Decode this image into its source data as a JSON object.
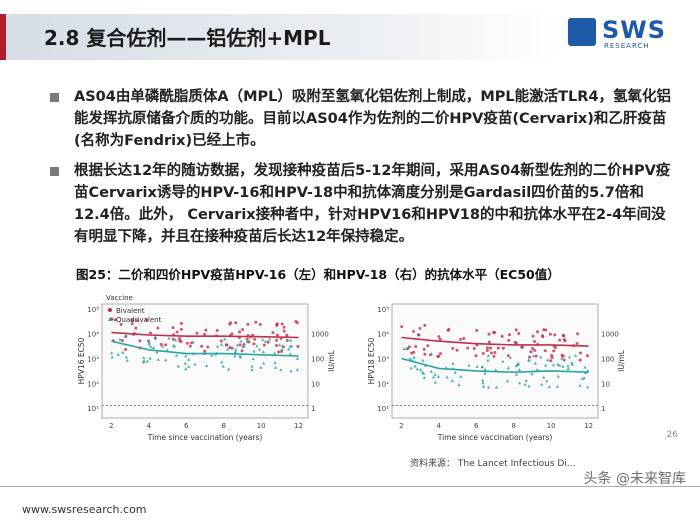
{
  "header": {
    "title": "2.8 复合佐剂——铝佐剂+MPL",
    "logo_text": "SWS",
    "logo_sub": "RESEARCH",
    "accent_color": "#b01c2e",
    "brand_color": "#1f5aa8"
  },
  "bullets": [
    "AS04由单磷酰脂质体A（MPL）吸附至氢氧化铝佐剂上制成，MPL能激活TLR4，氢氧化铝能发挥抗原储备介质的功能。目前以AS04作为佐剂的二价HPV疫苗(Cervarix)和乙肝疫苗(名称为Fendrix)已经上市。",
    "根据长达12年的随访数据，发现接种疫苗后5-12年期间，采用AS04新型佐剂的二价HPV疫苗Cervarix诱导的HPV-16和HPV-18中和抗体滴度分别是Gardasil四价苗的5.7倍和12.4倍。此外， Cervarix接种者中，针对HPV16和HPV18的中和抗体水平在2-4年间没有明显下降，并且在接种疫苗后长达12年保持稳定。"
  ],
  "figure": {
    "caption": "图25：二价和四价HPV疫苗HPV-16（左）和HPV-18（右）的抗体水平（EC50值）",
    "legend_title": "Vaccine",
    "legend_items": [
      "Bivalent",
      "Quadrivalent"
    ],
    "source": "资料来源： The Lancet Infectious Di..."
  },
  "chart_data": [
    {
      "type": "scatter",
      "title": "",
      "xlabel": "Time since vaccination (years)",
      "ylabel": "HPV16 EC50",
      "y2label": "IU/mL",
      "x_ticks": [
        2,
        4,
        6,
        8,
        10,
        12
      ],
      "y_ticks": [
        "10¹",
        "10²",
        "10³",
        "10⁴",
        "10⁵"
      ],
      "y2_ticks": [
        "1000",
        "100",
        "10",
        "1"
      ],
      "xlim": [
        1.5,
        12.5
      ],
      "series": [
        {
          "name": "Bivalent",
          "color": "#c0304a",
          "trend": [
            [
              2,
              4.05
            ],
            [
              4,
              3.95
            ],
            [
              6,
              3.9
            ],
            [
              8,
              3.9
            ],
            [
              10,
              3.88
            ],
            [
              12,
              3.85
            ]
          ]
        },
        {
          "name": "Quadrivalent",
          "color": "#2aa5a8",
          "trend": [
            [
              2,
              3.7
            ],
            [
              4,
              3.35
            ],
            [
              6,
              3.2
            ],
            [
              8,
              3.2
            ],
            [
              10,
              3.15
            ],
            [
              12,
              3.1
            ]
          ]
        }
      ]
    },
    {
      "type": "scatter",
      "title": "",
      "xlabel": "Time since vaccination (years)",
      "ylabel": "HPV18 EC50",
      "y2label": "IU/mL",
      "x_ticks": [
        2,
        4,
        6,
        8,
        10,
        12
      ],
      "y_ticks": [
        "10¹",
        "10²",
        "10³",
        "10⁴",
        "10⁵"
      ],
      "y2_ticks": [
        "1000",
        "100",
        "10",
        "1"
      ],
      "xlim": [
        1.5,
        12.5
      ],
      "series": [
        {
          "name": "Bivalent",
          "color": "#c0304a",
          "trend": [
            [
              2,
              3.85
            ],
            [
              4,
              3.7
            ],
            [
              6,
              3.6
            ],
            [
              8,
              3.55
            ],
            [
              10,
              3.55
            ],
            [
              12,
              3.5
            ]
          ]
        },
        {
          "name": "Quadrivalent",
          "color": "#2aa5a8",
          "trend": [
            [
              2,
              3.0
            ],
            [
              4,
              2.6
            ],
            [
              6,
              2.5
            ],
            [
              8,
              2.45
            ],
            [
              10,
              2.5
            ],
            [
              12,
              2.45
            ]
          ]
        }
      ]
    }
  ],
  "footer": {
    "url": "www.swsresearch.com",
    "page": "26",
    "watermark": "头条 @未来智库"
  }
}
